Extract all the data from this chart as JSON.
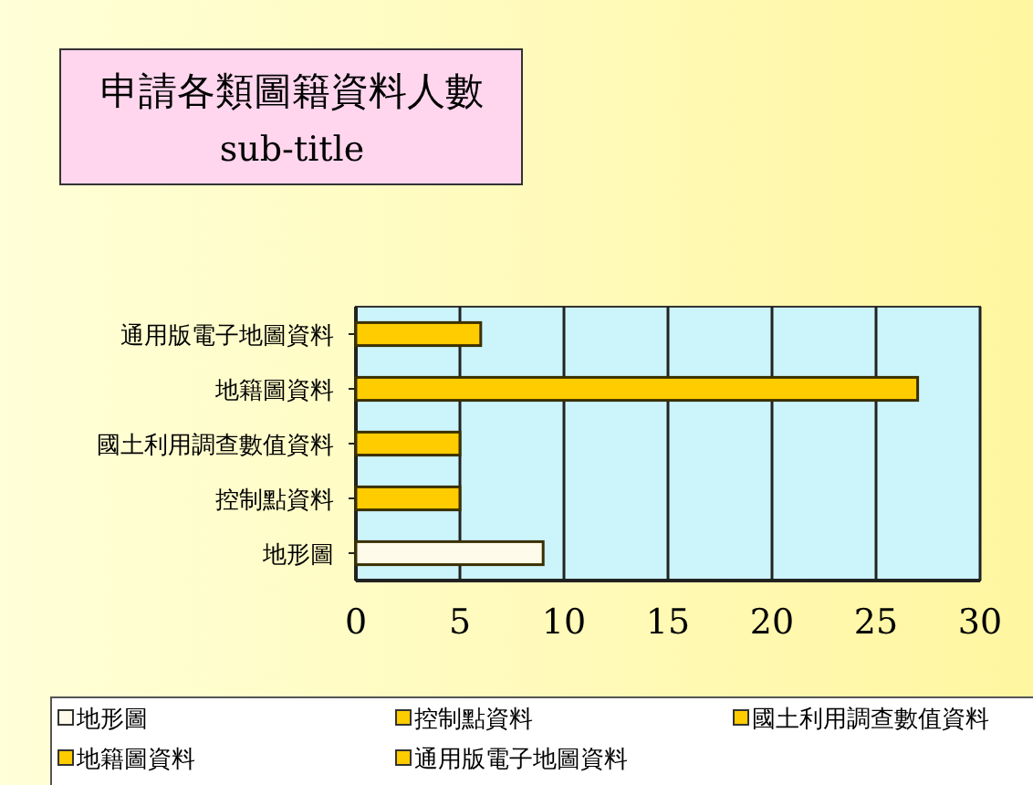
{
  "chart_data": {
    "type": "bar",
    "orientation": "horizontal",
    "title": "申請各類圖籍資料人數",
    "subtitle": "sub-title",
    "categories": [
      "通用版電子地圖資料",
      "地籍圖資料",
      "國土利用調查數值資料",
      "控制點資料",
      "地形圖"
    ],
    "series": [
      {
        "name": "地形圖",
        "color": "#fffbea",
        "values": [
          null,
          null,
          null,
          null,
          9
        ]
      },
      {
        "name": "控制點資料",
        "color": "#ffcc00",
        "values": [
          null,
          null,
          null,
          5,
          null
        ]
      },
      {
        "name": "國土利用調查數值資料",
        "color": "#ffcc00",
        "values": [
          null,
          null,
          5,
          null,
          null
        ]
      },
      {
        "name": "地籍圖資料",
        "color": "#ffcc00",
        "values": [
          null,
          27,
          null,
          null,
          null
        ]
      },
      {
        "name": "通用版電子地圖資料",
        "color": "#ffcc00",
        "values": [
          6,
          null,
          null,
          null,
          null
        ]
      }
    ],
    "xlim": [
      0,
      30
    ],
    "xticks": [
      0,
      5,
      10,
      15,
      20,
      25,
      30
    ],
    "grid": "x",
    "legend": "bottom"
  }
}
